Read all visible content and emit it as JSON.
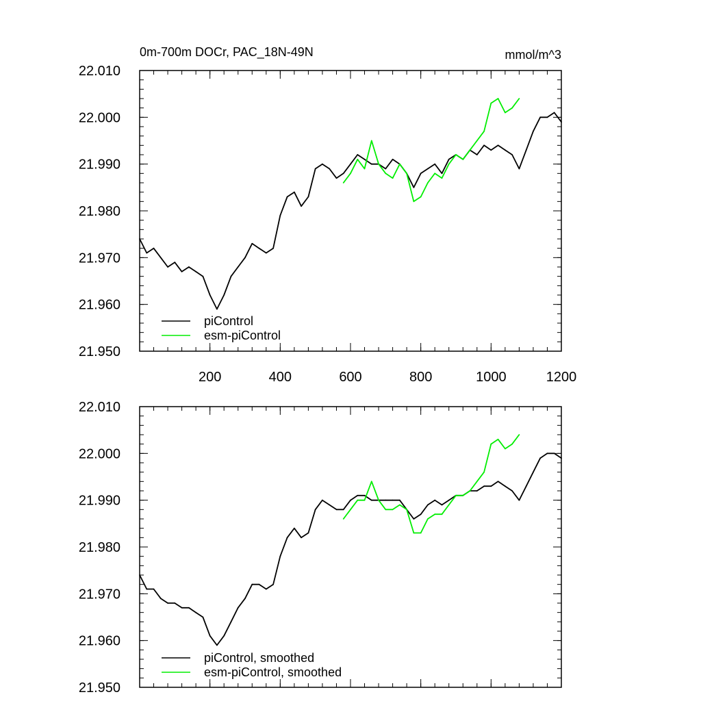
{
  "chart_data": [
    {
      "type": "line",
      "title": "0m-700m DOCr, PAC_18N-49N",
      "units": "mmol/m^3",
      "xlabel": "",
      "ylabel": "",
      "xlim": [
        0,
        1200
      ],
      "ylim": [
        21.95,
        22.01
      ],
      "x_ticks": [
        200,
        400,
        600,
        800,
        1000,
        1200
      ],
      "x_tick_labels": [
        "200",
        "400",
        "600",
        "800",
        "1000",
        "1200"
      ],
      "y_ticks": [
        21.95,
        21.96,
        21.97,
        21.98,
        21.99,
        22.0,
        22.01
      ],
      "y_tick_labels": [
        "21.950",
        "21.960",
        "21.970",
        "21.980",
        "21.990",
        "22.000",
        "22.010"
      ],
      "legend_position": "bottom-left",
      "grid": false,
      "series": [
        {
          "name": "piControl",
          "color": "#000000",
          "x": [
            0,
            20,
            40,
            60,
            80,
            100,
            120,
            140,
            160,
            180,
            200,
            220,
            240,
            260,
            280,
            300,
            320,
            340,
            360,
            380,
            400,
            420,
            440,
            460,
            480,
            500,
            520,
            540,
            560,
            580,
            600,
            620,
            640,
            660,
            680,
            700,
            720,
            740,
            760,
            780,
            800,
            820,
            840,
            860,
            880,
            900,
            920,
            940,
            960,
            980,
            1000,
            1020,
            1040,
            1060,
            1080,
            1100,
            1120,
            1140,
            1160,
            1180,
            1200
          ],
          "y": [
            21.974,
            21.971,
            21.972,
            21.97,
            21.968,
            21.969,
            21.967,
            21.968,
            21.967,
            21.966,
            21.962,
            21.959,
            21.962,
            21.966,
            21.968,
            21.97,
            21.973,
            21.972,
            21.971,
            21.972,
            21.979,
            21.983,
            21.984,
            21.981,
            21.983,
            21.989,
            21.99,
            21.989,
            21.987,
            21.988,
            21.99,
            21.992,
            21.991,
            21.99,
            21.99,
            21.989,
            21.991,
            21.99,
            21.988,
            21.985,
            21.988,
            21.989,
            21.99,
            21.988,
            21.991,
            21.992,
            21.991,
            21.993,
            21.992,
            21.994,
            21.993,
            21.994,
            21.993,
            21.992,
            21.989,
            21.993,
            21.997,
            22.0,
            22.0,
            22.001,
            21.999
          ]
        },
        {
          "name": "esm-piControl",
          "color": "#00ee00",
          "x": [
            580,
            600,
            620,
            640,
            660,
            680,
            700,
            720,
            740,
            760,
            780,
            800,
            820,
            840,
            860,
            880,
            900,
            920,
            940,
            960,
            980,
            1000,
            1020,
            1040,
            1060,
            1080
          ],
          "y": [
            21.986,
            21.988,
            21.991,
            21.989,
            21.995,
            21.99,
            21.988,
            21.987,
            21.99,
            21.988,
            21.982,
            21.983,
            21.986,
            21.988,
            21.987,
            21.99,
            21.992,
            21.991,
            21.993,
            21.995,
            21.997,
            22.003,
            22.004,
            22.001,
            22.002,
            22.004
          ]
        }
      ]
    },
    {
      "type": "line",
      "title": "",
      "xlabel": "",
      "ylabel": "",
      "xlim": [
        0,
        1200
      ],
      "ylim": [
        21.95,
        22.01
      ],
      "x_ticks": [
        200,
        400,
        600,
        800,
        1000,
        1200
      ],
      "x_tick_labels": [],
      "y_ticks": [
        21.95,
        21.96,
        21.97,
        21.98,
        21.99,
        22.0,
        22.01
      ],
      "y_tick_labels": [
        "21.950",
        "21.960",
        "21.970",
        "21.980",
        "21.990",
        "22.000",
        "22.010"
      ],
      "legend_position": "bottom-left",
      "grid": false,
      "series": [
        {
          "name": "piControl, smoothed",
          "color": "#000000",
          "x": [
            0,
            20,
            40,
            60,
            80,
            100,
            120,
            140,
            160,
            180,
            200,
            220,
            240,
            260,
            280,
            300,
            320,
            340,
            360,
            380,
            400,
            420,
            440,
            460,
            480,
            500,
            520,
            540,
            560,
            580,
            600,
            620,
            640,
            660,
            680,
            700,
            720,
            740,
            760,
            780,
            800,
            820,
            840,
            860,
            880,
            900,
            920,
            940,
            960,
            980,
            1000,
            1020,
            1040,
            1060,
            1080,
            1100,
            1120,
            1140,
            1160,
            1180,
            1200
          ],
          "y": [
            21.974,
            21.971,
            21.971,
            21.969,
            21.968,
            21.968,
            21.967,
            21.967,
            21.966,
            21.965,
            21.961,
            21.959,
            21.961,
            21.964,
            21.967,
            21.969,
            21.972,
            21.972,
            21.971,
            21.972,
            21.978,
            21.982,
            21.984,
            21.982,
            21.983,
            21.988,
            21.99,
            21.989,
            21.988,
            21.988,
            21.99,
            21.991,
            21.991,
            21.99,
            21.99,
            21.99,
            21.99,
            21.99,
            21.988,
            21.986,
            21.987,
            21.989,
            21.99,
            21.989,
            21.99,
            21.991,
            21.991,
            21.992,
            21.992,
            21.993,
            21.993,
            21.994,
            21.993,
            21.992,
            21.99,
            21.993,
            21.996,
            21.999,
            22.0,
            22.0,
            21.999
          ]
        },
        {
          "name": "esm-piControl, smoothed",
          "color": "#00ee00",
          "x": [
            580,
            600,
            620,
            640,
            660,
            680,
            700,
            720,
            740,
            760,
            780,
            800,
            820,
            840,
            860,
            880,
            900,
            920,
            940,
            960,
            980,
            1000,
            1020,
            1040,
            1060,
            1080
          ],
          "y": [
            21.986,
            21.988,
            21.99,
            21.99,
            21.994,
            21.99,
            21.988,
            21.988,
            21.989,
            21.988,
            21.983,
            21.983,
            21.986,
            21.987,
            21.987,
            21.989,
            21.991,
            21.991,
            21.992,
            21.994,
            21.996,
            22.002,
            22.003,
            22.001,
            22.002,
            22.004
          ]
        }
      ]
    }
  ]
}
